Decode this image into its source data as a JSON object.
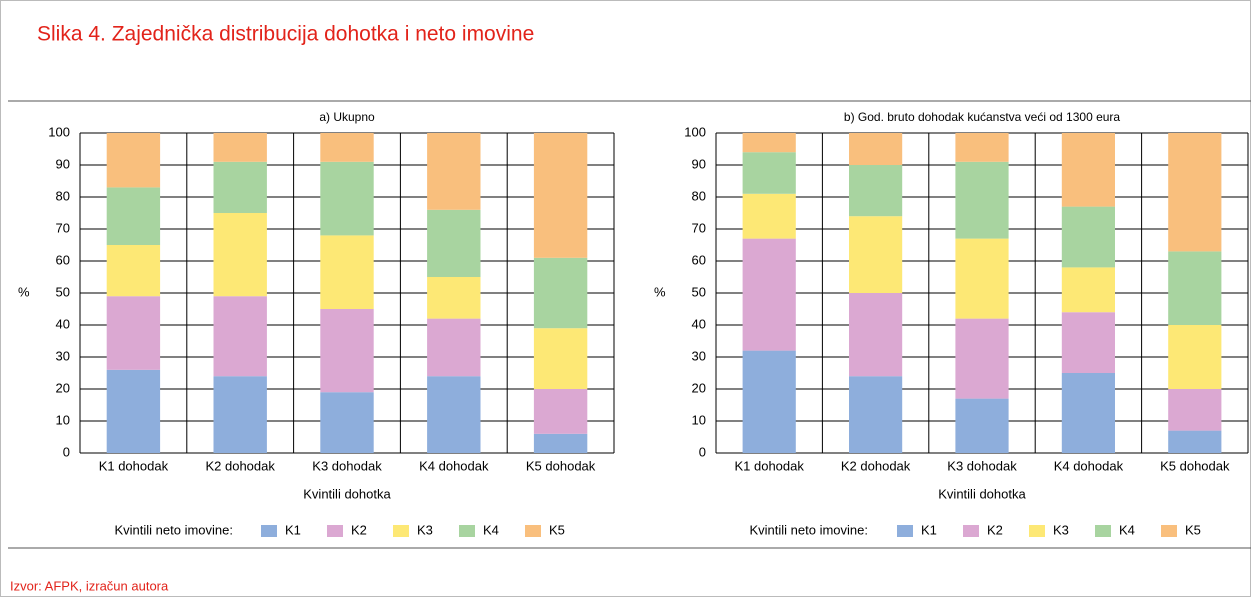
{
  "title": "Slika 4. Zajednička distribucija dohotka i neto imovine",
  "source": "Izvor: AFPK, izračun autora",
  "chart_data": [
    {
      "type": "stacked_bar",
      "title": "a) Ukupno",
      "x_label": "Kvintili dohotka",
      "y_label": "%",
      "legend_title": "Kvintili neto imovine:",
      "categories": [
        "K1 dohodak",
        "K2 dohodak",
        "K3 dohodak",
        "K4 dohodak",
        "K5 dohodak"
      ],
      "ylim": [
        0,
        100
      ],
      "yticks": [
        0,
        10,
        20,
        30,
        40,
        50,
        60,
        70,
        80,
        90,
        100
      ],
      "grid": true,
      "series": [
        {
          "name": "K1",
          "color": "#8eaedc",
          "values": [
            26,
            24,
            19,
            24,
            6
          ]
        },
        {
          "name": "K2",
          "color": "#dba8d2",
          "values": [
            23,
            25,
            26,
            18,
            14
          ]
        },
        {
          "name": "K3",
          "color": "#fde875",
          "values": [
            16,
            26,
            23,
            13,
            19
          ]
        },
        {
          "name": "K4",
          "color": "#a8d4a0",
          "values": [
            18,
            16,
            23,
            21,
            22
          ]
        },
        {
          "name": "K5",
          "color": "#f9bf7d",
          "values": [
            17,
            9,
            9,
            24,
            39
          ]
        }
      ]
    },
    {
      "type": "stacked_bar",
      "title": "b) God. bruto dohodak kućanstva veći od 1300 eura",
      "x_label": "Kvintili dohotka",
      "y_label": "%",
      "legend_title": "Kvintili neto imovine:",
      "categories": [
        "K1 dohodak",
        "K2 dohodak",
        "K3 dohodak",
        "K4 dohodak",
        "K5 dohodak"
      ],
      "ylim": [
        0,
        100
      ],
      "yticks": [
        0,
        10,
        20,
        30,
        40,
        50,
        60,
        70,
        80,
        90,
        100
      ],
      "grid": true,
      "series": [
        {
          "name": "K1",
          "color": "#8eaedc",
          "values": [
            32,
            24,
            17,
            25,
            7
          ]
        },
        {
          "name": "K2",
          "color": "#dba8d2",
          "values": [
            35,
            26,
            25,
            19,
            13
          ]
        },
        {
          "name": "K3",
          "color": "#fde875",
          "values": [
            14,
            24,
            25,
            14,
            20
          ]
        },
        {
          "name": "K4",
          "color": "#a8d4a0",
          "values": [
            13,
            16,
            24,
            19,
            23
          ]
        },
        {
          "name": "K5",
          "color": "#f9bf7d",
          "values": [
            6,
            10,
            9,
            23,
            37
          ]
        }
      ]
    }
  ]
}
